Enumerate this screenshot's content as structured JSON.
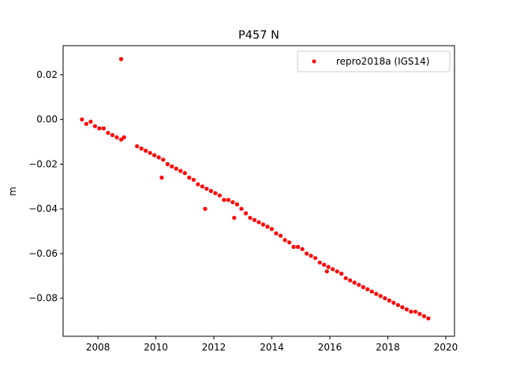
{
  "chart_data": {
    "type": "scatter",
    "title": "P457 N",
    "xlabel": "",
    "ylabel": "m",
    "xlim": [
      2006.8,
      2020.3
    ],
    "ylim": [
      -0.097,
      0.033
    ],
    "xticks": [
      2008,
      2010,
      2012,
      2014,
      2016,
      2018,
      2020
    ],
    "xtick_labels": [
      "2008",
      "2010",
      "2012",
      "2014",
      "2016",
      "2018",
      "2020"
    ],
    "yticks": [
      0.02,
      0.0,
      -0.02,
      -0.04,
      -0.06,
      -0.08
    ],
    "ytick_labels": [
      "0.02",
      "0.00",
      "−0.02",
      "−0.04",
      "−0.06",
      "−0.08"
    ],
    "grid": false,
    "legend_position": "top-right",
    "series": [
      {
        "name": "repro2018a (IGS14)",
        "color": "#ff0000",
        "marker": "circle",
        "x": [
          2007.45,
          2007.6,
          2007.75,
          2007.9,
          2008.05,
          2008.2,
          2008.35,
          2008.5,
          2008.65,
          2008.8,
          2008.9,
          2009.35,
          2009.5,
          2009.65,
          2009.8,
          2009.95,
          2010.1,
          2010.25,
          2010.4,
          2010.55,
          2010.7,
          2010.85,
          2011.0,
          2011.15,
          2011.3,
          2011.45,
          2011.6,
          2011.75,
          2011.9,
          2012.05,
          2012.2,
          2012.35,
          2012.5,
          2012.65,
          2012.8,
          2012.95,
          2013.1,
          2013.25,
          2013.4,
          2013.55,
          2013.7,
          2013.85,
          2014.0,
          2014.15,
          2014.3,
          2014.45,
          2014.6,
          2014.75,
          2014.9,
          2015.05,
          2015.2,
          2015.35,
          2015.5,
          2015.65,
          2015.8,
          2015.95,
          2016.1,
          2016.25,
          2016.4,
          2016.55,
          2016.7,
          2016.85,
          2017.0,
          2017.15,
          2017.3,
          2017.45,
          2017.6,
          2017.75,
          2017.9,
          2018.05,
          2018.2,
          2018.35,
          2018.5,
          2018.65,
          2018.8,
          2018.95,
          2019.1,
          2019.25,
          2019.4,
          2008.8,
          2010.2,
          2011.7,
          2012.7,
          2015.9
        ],
        "y": [
          0.0,
          -0.002,
          -0.001,
          -0.003,
          -0.004,
          -0.004,
          -0.006,
          -0.007,
          -0.008,
          -0.009,
          -0.008,
          -0.012,
          -0.013,
          -0.014,
          -0.015,
          -0.016,
          -0.017,
          -0.018,
          -0.02,
          -0.021,
          -0.022,
          -0.023,
          -0.024,
          -0.026,
          -0.027,
          -0.029,
          -0.03,
          -0.031,
          -0.032,
          -0.033,
          -0.034,
          -0.036,
          -0.036,
          -0.037,
          -0.038,
          -0.04,
          -0.042,
          -0.044,
          -0.045,
          -0.046,
          -0.047,
          -0.048,
          -0.049,
          -0.051,
          -0.052,
          -0.054,
          -0.055,
          -0.057,
          -0.057,
          -0.058,
          -0.06,
          -0.061,
          -0.062,
          -0.064,
          -0.065,
          -0.066,
          -0.067,
          -0.068,
          -0.069,
          -0.071,
          -0.072,
          -0.073,
          -0.074,
          -0.075,
          -0.076,
          -0.077,
          -0.078,
          -0.079,
          -0.08,
          -0.081,
          -0.082,
          -0.083,
          -0.084,
          -0.085,
          -0.086,
          -0.086,
          -0.087,
          -0.088,
          -0.089,
          0.027,
          -0.026,
          -0.04,
          -0.044,
          -0.068
        ]
      }
    ]
  }
}
